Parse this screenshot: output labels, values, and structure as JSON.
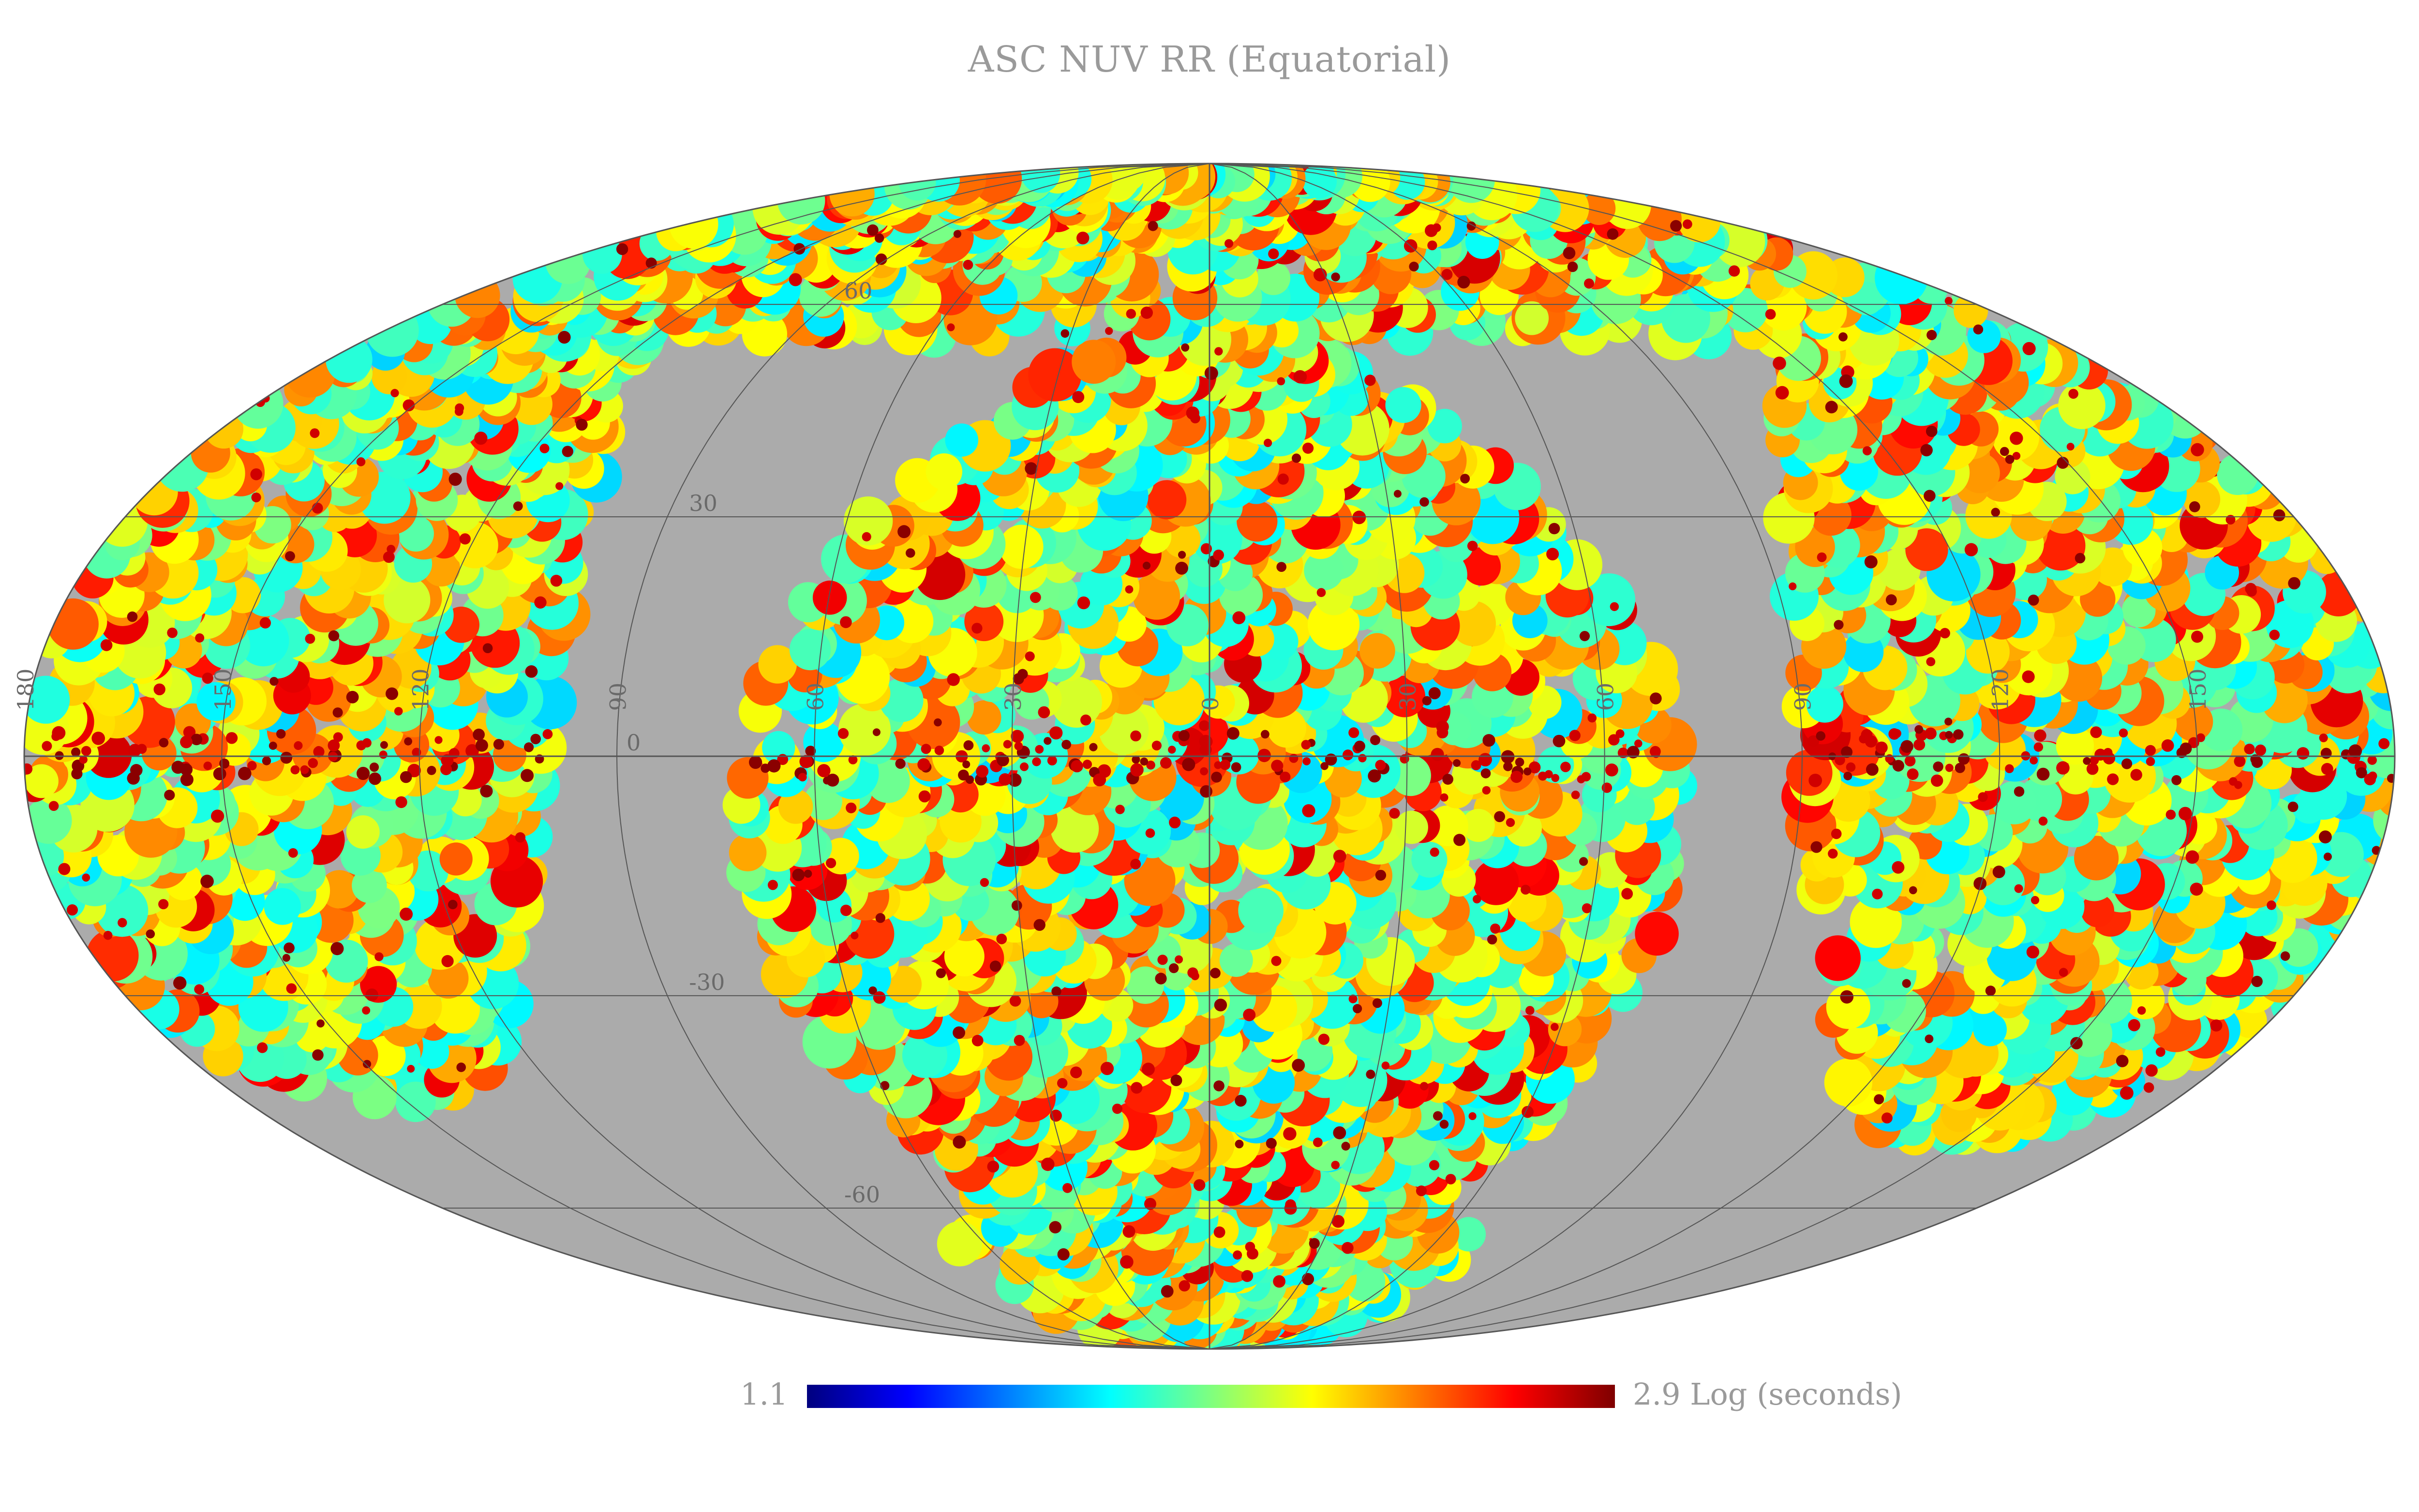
{
  "title": "ASC NUV RR (Equatorial)",
  "projection": "mollweide",
  "colormap": {
    "name": "jet",
    "min_label": "1.1",
    "max_label": "2.9 Log (seconds)",
    "min": 1.1,
    "max": 2.9,
    "stops": [
      "#00007f",
      "#0000ff",
      "#007fff",
      "#00ffff",
      "#7fff7f",
      "#ffff00",
      "#ff7f00",
      "#ff0000",
      "#7f0000"
    ]
  },
  "no_data_color": "#ababab",
  "graticule_color": "#555555",
  "longitude_labels": [
    "180",
    "150",
    "120",
    "90",
    "60",
    "30",
    "0",
    "30",
    "60",
    "90",
    "120",
    "150"
  ],
  "latitude_labels": [
    "60",
    "30",
    "0",
    "-30",
    "-60"
  ]
}
